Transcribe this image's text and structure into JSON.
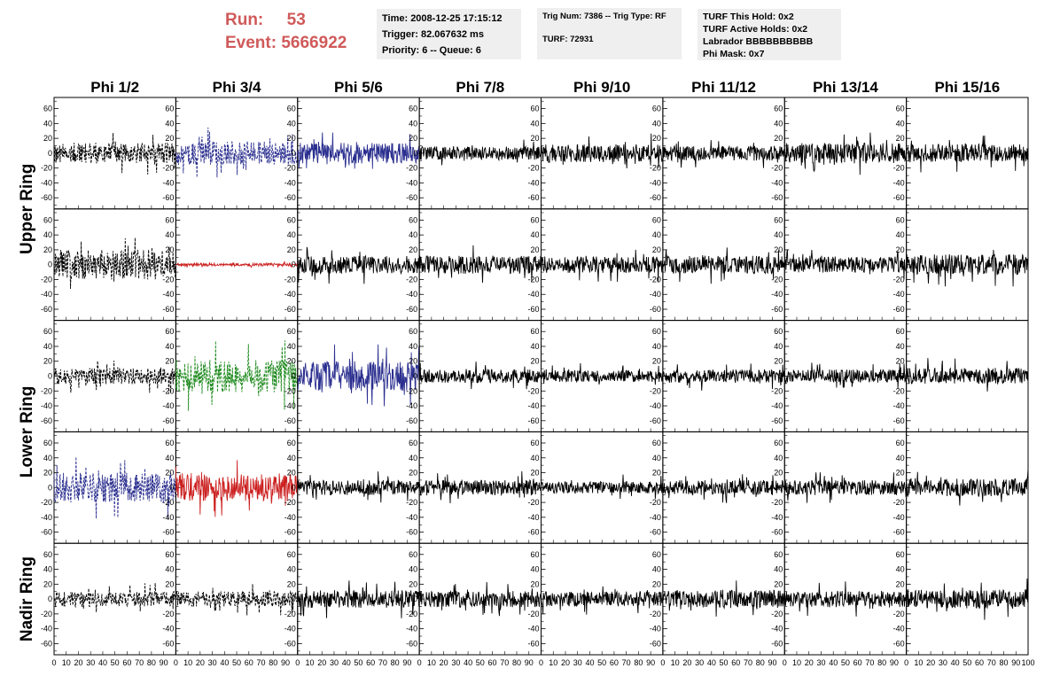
{
  "header": {
    "run_label": "Run:",
    "run_value": "53",
    "event_label": "Event:",
    "event_value": "5666922",
    "time_line": "Time: 2008-12-25 17:15:12",
    "trigger_line": "Trigger: 82.067632 ms",
    "priority_line": "Priority: 6 -- Queue: 6",
    "trig_line": "Trig Num: 7386 -- Trig Type: RF",
    "turf_line": "TURF: 72931",
    "turf_hold_line": "TURF This Hold: 0x2",
    "turf_active_line": "TURF Active Holds: 0x2",
    "labrador_line": "Labrador BBBBBBBBBB",
    "phi_mask_line": "Phi Mask: 0x7"
  },
  "colors": {
    "header_red": "#d05a5a",
    "box_gray": "#efefef",
    "trace_black": "#000000",
    "trace_blue": "#2b2f8f",
    "trace_red": "#cc2020",
    "trace_green": "#1e8a1e"
  },
  "chart_data": {
    "type": "line",
    "columns": [
      "Phi 1/2",
      "Phi 3/4",
      "Phi 5/6",
      "Phi 7/8",
      "Phi 9/10",
      "Phi 11/12",
      "Phi 13/14",
      "Phi 15/16"
    ],
    "row_labels": [
      {
        "text": "Upper Ring",
        "rows": [
          0,
          1
        ]
      },
      {
        "text": "Lower Ring",
        "rows": [
          2,
          3
        ]
      },
      {
        "text": "Nadir Ring",
        "rows": [
          4
        ]
      }
    ],
    "xlim": [
      0,
      100
    ],
    "ylim": [
      -75,
      75
    ],
    "x_ticks": [
      0,
      10,
      20,
      30,
      40,
      50,
      60,
      70,
      80,
      90,
      100
    ],
    "y_ticks": [
      -60,
      -40,
      -20,
      0,
      20,
      40,
      60
    ],
    "last_x_label": "100",
    "panels": [
      [
        {
          "color": "black",
          "style": "dashed",
          "amp": 14,
          "seed": 11
        },
        {
          "color": "blue",
          "style": "dashed",
          "amp": 16,
          "seed": 12
        },
        {
          "color": "blue",
          "style": "solid",
          "amp": 14,
          "seed": 13
        },
        {
          "color": "black",
          "style": "solid",
          "amp": 9,
          "seed": 14
        },
        {
          "color": "black",
          "style": "solid",
          "amp": 12,
          "seed": 15
        },
        {
          "color": "black",
          "style": "solid",
          "amp": 10,
          "seed": 16
        },
        {
          "color": "black",
          "style": "solid",
          "amp": 14,
          "seed": 17
        },
        {
          "color": "black",
          "style": "solid",
          "amp": 12,
          "seed": 18
        }
      ],
      [
        {
          "color": "black",
          "style": "dashed",
          "amp": 20,
          "seed": 21
        },
        {
          "color": "red",
          "style": "solid",
          "amp": 2,
          "seed": 22
        },
        {
          "color": "black",
          "style": "solid",
          "amp": 12,
          "seed": 23
        },
        {
          "color": "black",
          "style": "solid",
          "amp": 12,
          "seed": 24
        },
        {
          "color": "black",
          "style": "solid",
          "amp": 11,
          "seed": 25
        },
        {
          "color": "black",
          "style": "solid",
          "amp": 12,
          "seed": 26
        },
        {
          "color": "black",
          "style": "solid",
          "amp": 11,
          "seed": 27
        },
        {
          "color": "black",
          "style": "solid",
          "amp": 14,
          "seed": 28
        }
      ],
      [
        {
          "color": "black",
          "style": "dashed",
          "amp": 11,
          "seed": 31
        },
        {
          "color": "green",
          "style": "dashed",
          "amp": 22,
          "seed": 32
        },
        {
          "color": "blue",
          "style": "solid",
          "amp": 20,
          "seed": 33
        },
        {
          "color": "black",
          "style": "solid",
          "amp": 9,
          "seed": 34
        },
        {
          "color": "black",
          "style": "solid",
          "amp": 8,
          "seed": 35
        },
        {
          "color": "black",
          "style": "solid",
          "amp": 9,
          "seed": 36
        },
        {
          "color": "black",
          "style": "solid",
          "amp": 9,
          "seed": 37
        },
        {
          "color": "black",
          "style": "solid",
          "amp": 11,
          "seed": 38
        }
      ],
      [
        {
          "color": "blue",
          "style": "dashed",
          "amp": 20,
          "seed": 41
        },
        {
          "color": "red",
          "style": "solid",
          "amp": 18,
          "seed": 42
        },
        {
          "color": "black",
          "style": "solid",
          "amp": 10,
          "seed": 43
        },
        {
          "color": "black",
          "style": "solid",
          "amp": 10,
          "seed": 44
        },
        {
          "color": "black",
          "style": "solid",
          "amp": 8,
          "seed": 45
        },
        {
          "color": "black",
          "style": "solid",
          "amp": 10,
          "seed": 46
        },
        {
          "color": "black",
          "style": "solid",
          "amp": 10,
          "seed": 47
        },
        {
          "color": "black",
          "style": "solid",
          "amp": 12,
          "seed": 48
        }
      ],
      [
        {
          "color": "black",
          "style": "dashed",
          "amp": 10,
          "seed": 51
        },
        {
          "color": "black",
          "style": "dashed",
          "amp": 10,
          "seed": 52
        },
        {
          "color": "black",
          "style": "solid",
          "amp": 12,
          "seed": 53
        },
        {
          "color": "black",
          "style": "solid",
          "amp": 11,
          "seed": 54
        },
        {
          "color": "black",
          "style": "solid",
          "amp": 10,
          "seed": 55
        },
        {
          "color": "black",
          "style": "solid",
          "amp": 12,
          "seed": 56
        },
        {
          "color": "black",
          "style": "solid",
          "amp": 11,
          "seed": 57
        },
        {
          "color": "black",
          "style": "solid",
          "amp": 13,
          "seed": 58
        }
      ]
    ]
  }
}
